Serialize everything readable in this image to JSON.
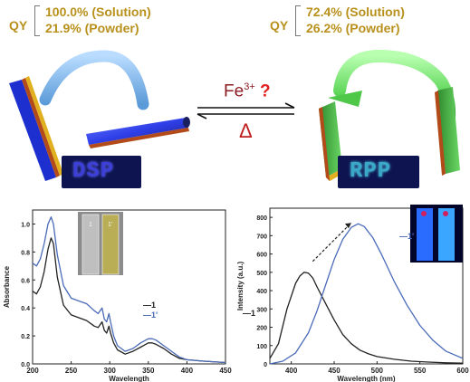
{
  "scheme": {
    "left": {
      "qy_label": "QY",
      "solution": "100.0% (Solution)",
      "powder": "21.9% (Powder)",
      "photo_text": "DSP"
    },
    "right": {
      "qy_label": "QY",
      "solution": "72.4% (Solution)",
      "powder": "26.2% (Powder)",
      "photo_text": "RPP"
    },
    "reagent": "Fe",
    "reagent_charge": "3+",
    "reagent_question": "?",
    "reverse": "Δ"
  },
  "chart_data": [
    {
      "type": "line",
      "xlabel": "Wavelength",
      "ylabel": "Absorbance",
      "xlim": [
        200,
        450
      ],
      "ylim": [
        0,
        1.1
      ],
      "xticks": [
        200,
        250,
        300,
        350,
        400,
        450
      ],
      "yticks": [
        0.0,
        0.2,
        0.4,
        0.6,
        0.8,
        1.0
      ],
      "ytick_labels": [
        "0.0",
        "0.2",
        "0.4",
        "0.6",
        "0.8",
        "1.0"
      ],
      "legend": [
        "—1",
        "—1'"
      ],
      "series": [
        {
          "name": "1",
          "color": "#222222",
          "x": [
            200,
            205,
            210,
            215,
            220,
            224,
            227,
            232,
            240,
            250,
            260,
            270,
            280,
            285,
            290,
            293,
            296,
            299,
            301,
            305,
            310,
            320,
            330,
            340,
            350,
            355,
            360,
            370,
            380,
            390,
            400,
            420,
            450
          ],
          "y": [
            0.52,
            0.5,
            0.55,
            0.66,
            0.82,
            0.9,
            0.86,
            0.62,
            0.42,
            0.35,
            0.33,
            0.31,
            0.27,
            0.26,
            0.3,
            0.24,
            0.22,
            0.27,
            0.22,
            0.15,
            0.1,
            0.07,
            0.09,
            0.12,
            0.15,
            0.15,
            0.14,
            0.11,
            0.07,
            0.04,
            0.03,
            0.02,
            0.01
          ]
        },
        {
          "name": "1'",
          "color": "#4a6bb8",
          "x": [
            200,
            205,
            210,
            215,
            220,
            224,
            227,
            232,
            240,
            250,
            260,
            270,
            280,
            285,
            290,
            293,
            296,
            299,
            301,
            305,
            310,
            320,
            330,
            340,
            350,
            355,
            360,
            370,
            380,
            390,
            400,
            420,
            450
          ],
          "y": [
            0.72,
            0.7,
            0.75,
            0.86,
            1.0,
            1.05,
            1.0,
            0.78,
            0.56,
            0.47,
            0.45,
            0.43,
            0.38,
            0.36,
            0.4,
            0.32,
            0.3,
            0.36,
            0.3,
            0.2,
            0.13,
            0.09,
            0.11,
            0.15,
            0.18,
            0.18,
            0.17,
            0.13,
            0.09,
            0.05,
            0.03,
            0.02,
            0.01
          ]
        }
      ],
      "inset_labels": [
        "1",
        "1'"
      ]
    },
    {
      "type": "line",
      "xlabel": "Wavelength (nm)",
      "ylabel": "Intensity (a.u.)",
      "xlim": [
        375,
        600
      ],
      "ylim": [
        0,
        850
      ],
      "xticks": [
        400,
        450,
        500,
        550,
        600
      ],
      "yticks": [
        0,
        100,
        200,
        300,
        400,
        500,
        600,
        700,
        800
      ],
      "legend": [
        "—1",
        "—1'"
      ],
      "series": [
        {
          "name": "1",
          "color": "#222222",
          "x": [
            375,
            385,
            395,
            405,
            410,
            415,
            420,
            425,
            430,
            440,
            450,
            460,
            470,
            480,
            490,
            500,
            520,
            540,
            560,
            580,
            600
          ],
          "y": [
            30,
            110,
            300,
            440,
            480,
            500,
            495,
            470,
            420,
            330,
            240,
            160,
            110,
            75,
            55,
            40,
            25,
            15,
            10,
            6,
            4
          ]
        },
        {
          "name": "1'",
          "color": "#4a6bb8",
          "x": [
            375,
            390,
            405,
            420,
            430,
            440,
            450,
            460,
            470,
            478,
            485,
            495,
            505,
            520,
            535,
            550,
            565,
            580,
            600
          ],
          "y": [
            0,
            15,
            60,
            170,
            290,
            430,
            570,
            680,
            745,
            765,
            750,
            690,
            600,
            450,
            320,
            210,
            130,
            70,
            30
          ]
        }
      ]
    }
  ]
}
